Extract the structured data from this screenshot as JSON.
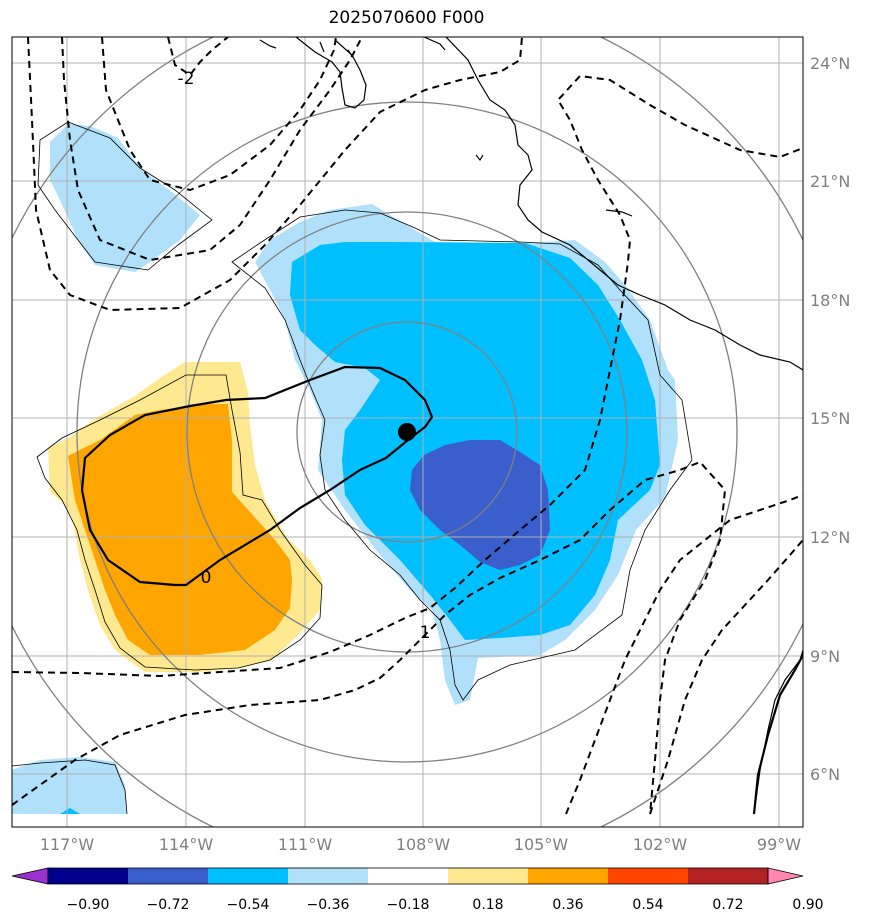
{
  "title": "2025070600 F000",
  "map": {
    "lon_ticks": [
      "117°W",
      "114°W",
      "111°W",
      "108°W",
      "105°W",
      "102°W",
      "99°W"
    ],
    "lat_ticks": [
      "24°N",
      "21°N",
      "18°N",
      "15°N",
      "12°N",
      "9°N",
      "6°N"
    ],
    "contour_labels": [
      "-2",
      "0",
      "1"
    ],
    "center_marker": {
      "lat": 14.6,
      "lon": "108.4°W"
    }
  },
  "colorbar": {
    "levels": [
      "−0.90",
      "−0.72",
      "−0.54",
      "−0.36",
      "−0.18",
      "0.18",
      "0.36",
      "0.54",
      "0.72",
      "0.90"
    ],
    "colors": [
      "#9932cc",
      "#00008b",
      "#3a5fcd",
      "#00bfff",
      "#b0e0fa",
      "#ffffff",
      "#ffe990",
      "#ffa500",
      "#ff4500",
      "#b22222",
      "#ff88b0"
    ]
  }
}
